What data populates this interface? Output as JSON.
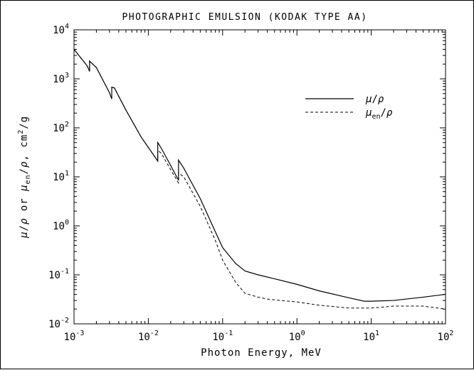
{
  "chart_data": {
    "type": "line",
    "title": "PHOTOGRAPHIC EMULSION (KODAK TYPE AA)",
    "xlabel": "Photon Energy, MeV",
    "ylabel_parts": {
      "mu": "μ",
      "rho": "ρ",
      "or": "or",
      "en": "en",
      "units": "cm",
      "units_exp": "2",
      "units_tail": "/g"
    },
    "x_scale": "log",
    "y_scale": "log",
    "xlim": [
      0.001,
      100
    ],
    "ylim": [
      0.01,
      10000
    ],
    "x_ticks": [
      {
        "base": "10",
        "exp": "-3",
        "value": 0.001
      },
      {
        "base": "10",
        "exp": "-2",
        "value": 0.01
      },
      {
        "base": "10",
        "exp": "-1",
        "value": 0.1
      },
      {
        "base": "10",
        "exp": "0",
        "value": 1
      },
      {
        "base": "10",
        "exp": "1",
        "value": 10
      },
      {
        "base": "10",
        "exp": "2",
        "value": 100
      }
    ],
    "y_ticks": [
      {
        "base": "10",
        "exp": "-2",
        "value": 0.01
      },
      {
        "base": "10",
        "exp": "-1",
        "value": 0.1
      },
      {
        "base": "10",
        "exp": "0",
        "value": 1
      },
      {
        "base": "10",
        "exp": "1",
        "value": 10
      },
      {
        "base": "10",
        "exp": "2",
        "value": 100
      },
      {
        "base": "10",
        "exp": "3",
        "value": 1000
      },
      {
        "base": "10",
        "exp": "4",
        "value": 10000
      }
    ],
    "grid": false,
    "legend_position": "upper-right",
    "legend": [
      {
        "series": "mu_rho",
        "symbol": "μ",
        "slash": "/",
        "rho": "ρ",
        "sub": "",
        "style": "solid"
      },
      {
        "series": "mu_en_rho",
        "symbol": "μ",
        "slash": "/",
        "rho": "ρ",
        "sub": "en",
        "style": "dashed"
      }
    ],
    "series": [
      {
        "id": "mu_rho",
        "style": "solid",
        "x": [
          0.001,
          0.0015,
          0.00162,
          0.00162,
          0.002,
          0.003,
          0.00322,
          0.00322,
          0.0035,
          0.004,
          0.005,
          0.008,
          0.0134,
          0.0134,
          0.015,
          0.02,
          0.0255,
          0.0255,
          0.03,
          0.05,
          0.08,
          0.1,
          0.15,
          0.2,
          0.3,
          0.5,
          1,
          2,
          5,
          8,
          10,
          20,
          50,
          100
        ],
        "y": [
          4000,
          1850,
          1420,
          2300,
          1700,
          520,
          390,
          680,
          650,
          440,
          230,
          65,
          21,
          50,
          38,
          17,
          8.5,
          22,
          15,
          3.6,
          0.75,
          0.36,
          0.17,
          0.12,
          0.1,
          0.083,
          0.064,
          0.047,
          0.034,
          0.029,
          0.029,
          0.03,
          0.035,
          0.04
        ]
      },
      {
        "id": "mu_en_rho",
        "style": "dashed",
        "x": [
          0.001,
          0.0015,
          0.00162,
          0.00162,
          0.002,
          0.003,
          0.00322,
          0.00322,
          0.0035,
          0.004,
          0.005,
          0.008,
          0.0134,
          0.0134,
          0.015,
          0.02,
          0.0255,
          0.0255,
          0.03,
          0.05,
          0.08,
          0.1,
          0.15,
          0.2,
          0.3,
          0.4,
          0.6,
          1,
          2,
          5,
          10,
          20,
          50,
          100
        ],
        "y": [
          4000,
          1850,
          1420,
          2300,
          1700,
          520,
          390,
          680,
          650,
          440,
          230,
          65,
          21,
          35,
          30,
          14,
          7.5,
          12,
          10,
          2.5,
          0.5,
          0.2,
          0.07,
          0.042,
          0.035,
          0.032,
          0.03,
          0.028,
          0.024,
          0.021,
          0.021,
          0.023,
          0.023,
          0.02
        ]
      }
    ]
  }
}
